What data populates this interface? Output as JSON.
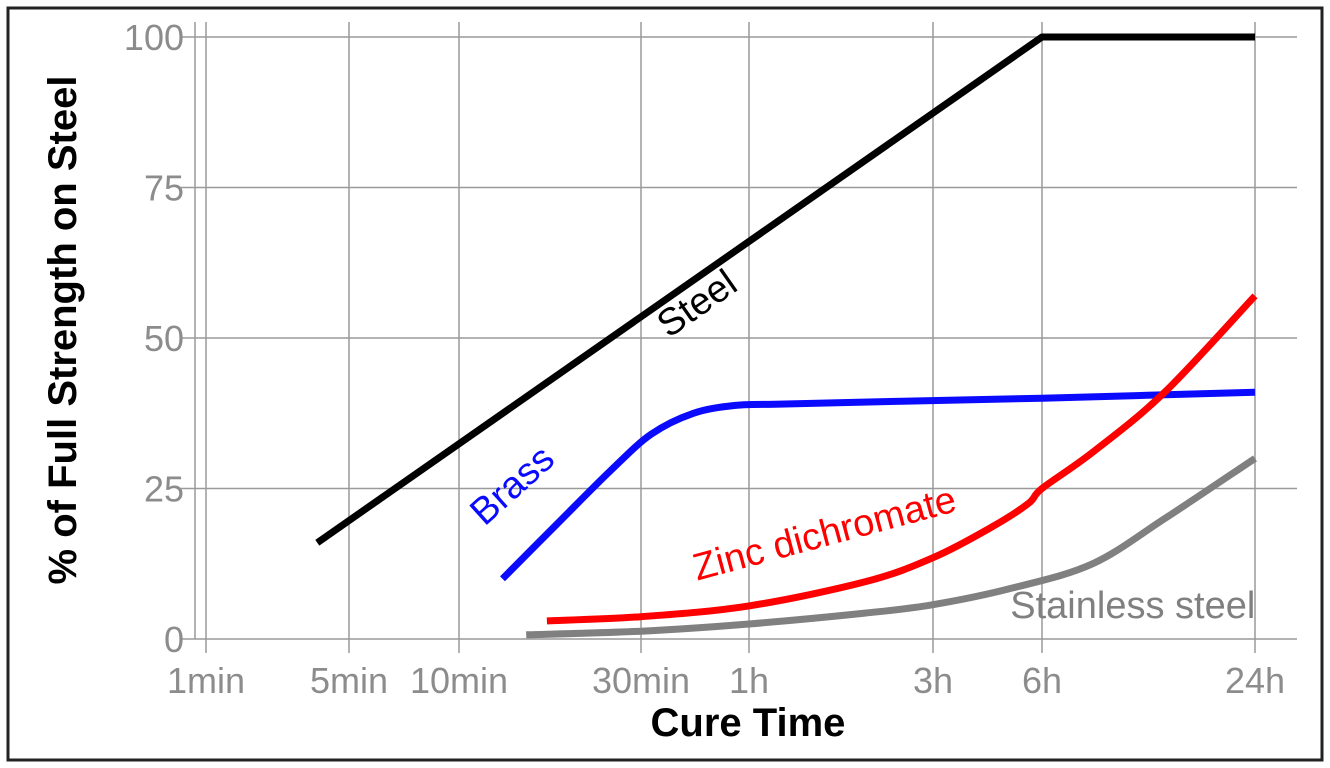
{
  "chart_data": {
    "type": "line",
    "title": "",
    "xlabel": "Cure Time",
    "ylabel": "% of Full Strength on Steel",
    "x_scale": "log",
    "x_unit": "minutes",
    "xlim": [
      1,
      1440
    ],
    "ylim": [
      0,
      100
    ],
    "grid": true,
    "x_ticks": [
      {
        "label": "1min",
        "value": 1
      },
      {
        "label": "5min",
        "value": 5
      },
      {
        "label": "10min",
        "value": 10
      },
      {
        "label": "30min",
        "value": 30
      },
      {
        "label": "1h",
        "value": 60
      },
      {
        "label": "3h",
        "value": 180
      },
      {
        "label": "6h",
        "value": 360
      },
      {
        "label": "24h",
        "value": 1440
      }
    ],
    "y_ticks": [
      {
        "label": "0",
        "value": 0
      },
      {
        "label": "25",
        "value": 25
      },
      {
        "label": "50",
        "value": 50
      },
      {
        "label": "75",
        "value": 75
      },
      {
        "label": "100",
        "value": 100
      }
    ],
    "series": [
      {
        "name": "Steel",
        "color": "#000000",
        "x": [
          3.5,
          360,
          1440
        ],
        "y": [
          16,
          100,
          100
        ],
        "label": {
          "text": "Steel",
          "at_x": 45,
          "at_y": 54,
          "angle": -35
        }
      },
      {
        "name": "Brass",
        "color": "#0a0aff",
        "x": [
          13,
          18,
          25,
          32,
          42,
          55,
          70,
          150,
          360,
          1440
        ],
        "y": [
          10,
          19,
          28,
          34,
          37.5,
          38.8,
          39,
          39.5,
          40,
          41
        ],
        "label": {
          "text": "Brass",
          "at_x": 14.5,
          "at_y": 24,
          "angle": -42
        }
      },
      {
        "name": "Zinc dichromate",
        "color": "#ff0000",
        "x": [
          17,
          30,
          60,
          120,
          180,
          260,
          330,
          360,
          500,
          800,
          1440
        ],
        "y": [
          3,
          3.7,
          5.5,
          9.5,
          13.5,
          18.5,
          22.5,
          25,
          31,
          41,
          57
        ],
        "label": {
          "text": "Zinc dichromate",
          "at_x": 96,
          "at_y": 15.5,
          "angle": -15
        }
      },
      {
        "name": "Stainless steel",
        "color": "#808080",
        "x": [
          15,
          30,
          60,
          120,
          180,
          300,
          500,
          800,
          1440
        ],
        "y": [
          0.7,
          1.3,
          2.5,
          4.3,
          5.7,
          8.5,
          12.5,
          20,
          30
        ],
        "label": {
          "text": "Stainless steel",
          "at_x": 650,
          "at_y": 3.5,
          "angle": 0
        }
      }
    ]
  }
}
